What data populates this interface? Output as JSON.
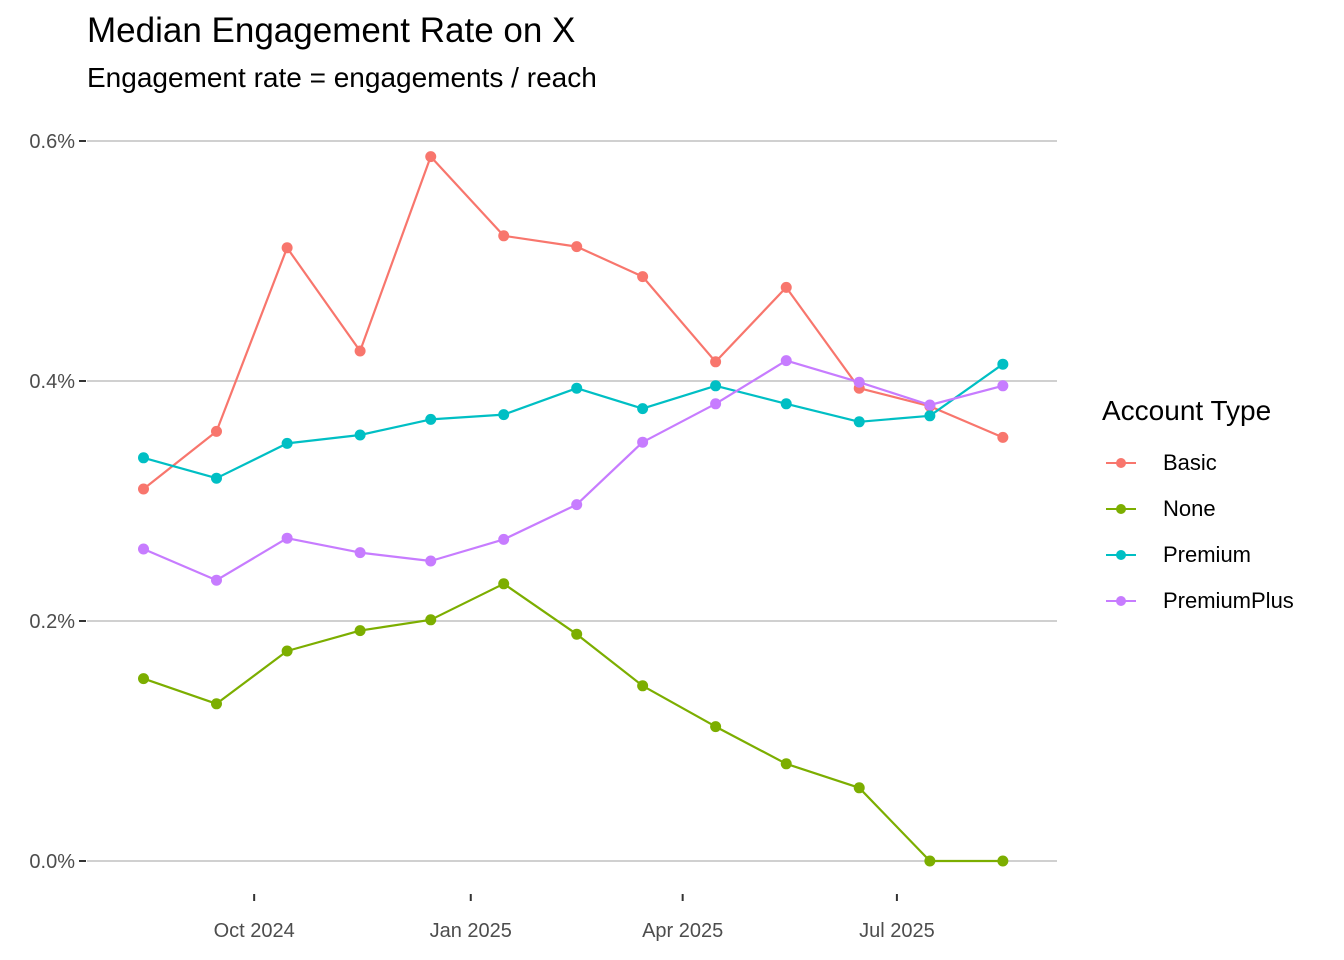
{
  "chart_data": {
    "type": "line",
    "title": "Median Engagement Rate on X",
    "subtitle": "Engagement rate = engagements / reach",
    "xlabel": "",
    "ylabel": "",
    "x": [
      "2024-08",
      "2024-09",
      "2024-10",
      "2024-11",
      "2024-12",
      "2025-01",
      "2025-02",
      "2025-03",
      "2025-04",
      "2025-05",
      "2025-06",
      "2025-07",
      "2025-08"
    ],
    "x_ticks": [
      {
        "date": "2024-10-01",
        "label": "Oct 2024"
      },
      {
        "date": "2025-01-01",
        "label": "Jan 2025"
      },
      {
        "date": "2025-04-01",
        "label": "Apr 2025"
      },
      {
        "date": "2025-07-01",
        "label": "Jul 2025"
      }
    ],
    "y_ticks": [
      {
        "value": 0.0,
        "label": "0.0%"
      },
      {
        "value": 0.2,
        "label": "0.2%"
      },
      {
        "value": 0.4,
        "label": "0.4%"
      },
      {
        "value": 0.6,
        "label": "0.6%"
      }
    ],
    "ylim": [
      -0.025,
      0.625
    ],
    "grid": "horizontal major",
    "legend": {
      "title": "Account Type",
      "position": "right"
    },
    "series": [
      {
        "name": "Basic",
        "color": "#F8766D",
        "values": [
          0.31,
          0.358,
          0.511,
          0.425,
          0.587,
          0.521,
          0.512,
          0.487,
          0.416,
          0.478,
          0.394,
          0.379,
          0.353
        ]
      },
      {
        "name": "None",
        "color": "#7CAE00",
        "values": [
          0.152,
          0.131,
          0.175,
          0.192,
          0.201,
          0.231,
          0.189,
          0.146,
          0.112,
          0.081,
          0.061,
          0.0,
          0.0
        ]
      },
      {
        "name": "Premium",
        "color": "#00BFC4",
        "values": [
          0.336,
          0.319,
          0.348,
          0.355,
          0.368,
          0.372,
          0.394,
          0.377,
          0.396,
          0.381,
          0.366,
          0.371,
          0.414
        ]
      },
      {
        "name": "PremiumPlus",
        "color": "#C77CFF",
        "values": [
          0.26,
          0.234,
          0.269,
          0.257,
          0.25,
          0.268,
          0.297,
          0.349,
          0.381,
          0.417,
          0.399,
          0.38,
          0.396
        ]
      }
    ]
  }
}
